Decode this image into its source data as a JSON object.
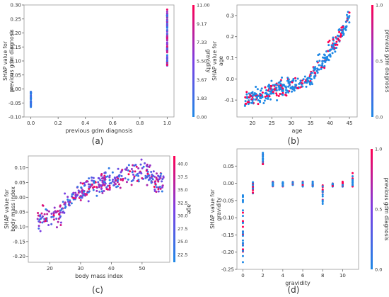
{
  "figure": {
    "panels": [
      "a",
      "b",
      "c",
      "d"
    ]
  },
  "colors": {
    "low": "#1e88e5",
    "mid": "#7b3fe4",
    "high": "#ff0052"
  },
  "chart_data": [
    {
      "type": "scatter",
      "panel_label": "(a)",
      "title": "",
      "xlabel": "previous gdm diagnosis",
      "ylabel": "SHAP value for\nprevious gdm diagnosis",
      "xlim": [
        -0.05,
        1.05
      ],
      "ylim": [
        -0.1,
        0.3
      ],
      "xticks": [
        "0.0",
        "0.2",
        "0.4",
        "0.6",
        "0.8",
        "1.0"
      ],
      "yticks": [
        "-0.10",
        "-0.05",
        "0.00",
        "0.05",
        "0.10",
        "0.15",
        "0.20",
        "0.25",
        "0.30"
      ],
      "colorbar": {
        "label": "gravidity",
        "range": [
          0,
          11
        ],
        "ticks": [
          "0.00",
          "1.83",
          "3.67",
          "5.50",
          "7.33",
          "9.17",
          "11.00"
        ]
      },
      "series": [
        {
          "x": 0,
          "y_range": [
            -0.065,
            -0.01
          ],
          "note_color_value_range": [
            0,
            4
          ]
        },
        {
          "x": 1,
          "y_range": [
            0.08,
            0.285
          ],
          "note_color_value_range": [
            0,
            11
          ]
        }
      ]
    },
    {
      "type": "scatter",
      "panel_label": "(b)",
      "title": "",
      "xlabel": "age",
      "ylabel": "SHAP value for\nage",
      "xlim": [
        16,
        47
      ],
      "ylim": [
        -0.18,
        0.35
      ],
      "xticks": [
        "20",
        "25",
        "30",
        "35",
        "40",
        "45"
      ],
      "yticks": [
        "-0.1",
        "0.0",
        "0.1",
        "0.2",
        "0.3"
      ],
      "colorbar": {
        "label": "previous gdm diagnosis",
        "range": [
          0,
          1
        ],
        "ticks": [
          "0.0",
          "0.5",
          "1.0"
        ]
      },
      "trend": [
        [
          18,
          -0.1
        ],
        [
          22,
          -0.08
        ],
        [
          25,
          -0.05
        ],
        [
          28,
          -0.04
        ],
        [
          32,
          -0.03
        ],
        [
          35,
          0.0
        ],
        [
          37,
          0.06
        ],
        [
          39,
          0.1
        ],
        [
          41,
          0.16
        ],
        [
          43,
          0.22
        ],
        [
          45,
          0.3
        ]
      ]
    },
    {
      "type": "scatter",
      "panel_label": "(c)",
      "title": "",
      "xlabel": "body mass index",
      "ylabel": "SHAP value for\nbody mass index",
      "xlim": [
        13,
        59
      ],
      "ylim": [
        -0.22,
        0.14
      ],
      "xticks": [
        "20",
        "30",
        "40",
        "50"
      ],
      "yticks": [
        "-0.20",
        "-0.15",
        "-0.10",
        "-0.05",
        "0.00",
        "0.05",
        "0.10"
      ],
      "colorbar": {
        "label": "age",
        "range": [
          21,
          41.5
        ],
        "ticks": [
          "22.5",
          "25.0",
          "27.5",
          "30.0",
          "32.5",
          "35.0",
          "37.5",
          "40.0"
        ]
      },
      "trend": [
        [
          16,
          -0.07
        ],
        [
          20,
          -0.075
        ],
        [
          23,
          -0.06
        ],
        [
          25,
          -0.03
        ],
        [
          27,
          -0.01
        ],
        [
          29,
          0.01
        ],
        [
          31,
          0.025
        ],
        [
          34,
          0.04
        ],
        [
          37,
          0.05
        ],
        [
          40,
          0.05
        ],
        [
          44,
          0.07
        ],
        [
          50,
          0.09
        ],
        [
          57,
          0.045
        ]
      ]
    },
    {
      "type": "scatter",
      "panel_label": "(d)",
      "title": "",
      "xlabel": "gravidity",
      "ylabel": "SHAP value for\ngravidity",
      "xlim": [
        -0.6,
        11.6
      ],
      "ylim": [
        -0.25,
        0.1
      ],
      "xticks": [
        "0",
        "2",
        "4",
        "6",
        "8",
        "10"
      ],
      "yticks": [
        "-0.25",
        "-0.20",
        "-0.15",
        "-0.10",
        "-0.05",
        "0.00",
        "0.05"
      ],
      "colorbar": {
        "label": "previous gdm diagnosis",
        "range": [
          0,
          1
        ],
        "ticks": [
          "0.0",
          "0.5",
          "1.0"
        ]
      },
      "columns": [
        {
          "x": 0,
          "y_min": -0.235,
          "y_max": -0.03
        },
        {
          "x": 1,
          "y_min": -0.03,
          "y_max": 0.005
        },
        {
          "x": 2,
          "y_min": 0.055,
          "y_max": 0.09
        },
        {
          "x": 3,
          "y_min": -0.01,
          "y_max": 0.005
        },
        {
          "x": 4,
          "y_min": -0.01,
          "y_max": 0.005
        },
        {
          "x": 5,
          "y_min": -0.01,
          "y_max": 0.005
        },
        {
          "x": 6,
          "y_min": -0.01,
          "y_max": 0.005
        },
        {
          "x": 7,
          "y_min": -0.01,
          "y_max": 0.005
        },
        {
          "x": 8,
          "y_min": -0.06,
          "y_max": -0.005
        },
        {
          "x": 9,
          "y_min": -0.01,
          "y_max": 0.0
        },
        {
          "x": 10,
          "y_min": -0.01,
          "y_max": 0.005
        },
        {
          "x": 11,
          "y_min": -0.01,
          "y_max": 0.03
        }
      ]
    }
  ]
}
